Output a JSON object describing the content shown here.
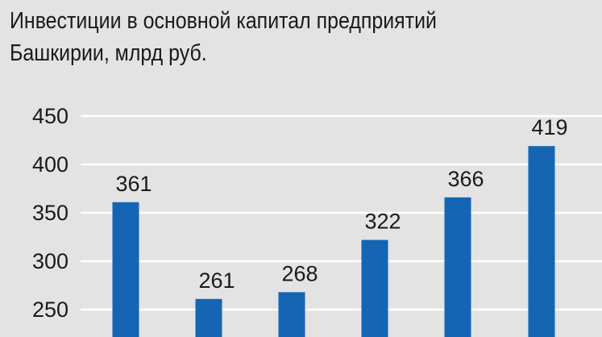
{
  "chart_data": {
    "type": "bar",
    "title_lines": [
      "Инвестиции в основной капитал предприятий",
      "Башкирии, млрд руб."
    ],
    "categories": [
      "",
      "",
      "",
      "",
      "",
      ""
    ],
    "values": [
      361,
      261,
      268,
      322,
      366,
      419
    ],
    "data_labels": [
      "361",
      "261",
      "268",
      "322",
      "366",
      "419"
    ],
    "y_ticks": [
      250,
      300,
      350,
      400,
      450
    ],
    "y_tick_labels": [
      "250",
      "300",
      "350",
      "400",
      "450"
    ],
    "ylim": [
      225,
      450
    ],
    "grid": true,
    "bar_color": "#1565b4",
    "grid_color": "#ffffff"
  }
}
